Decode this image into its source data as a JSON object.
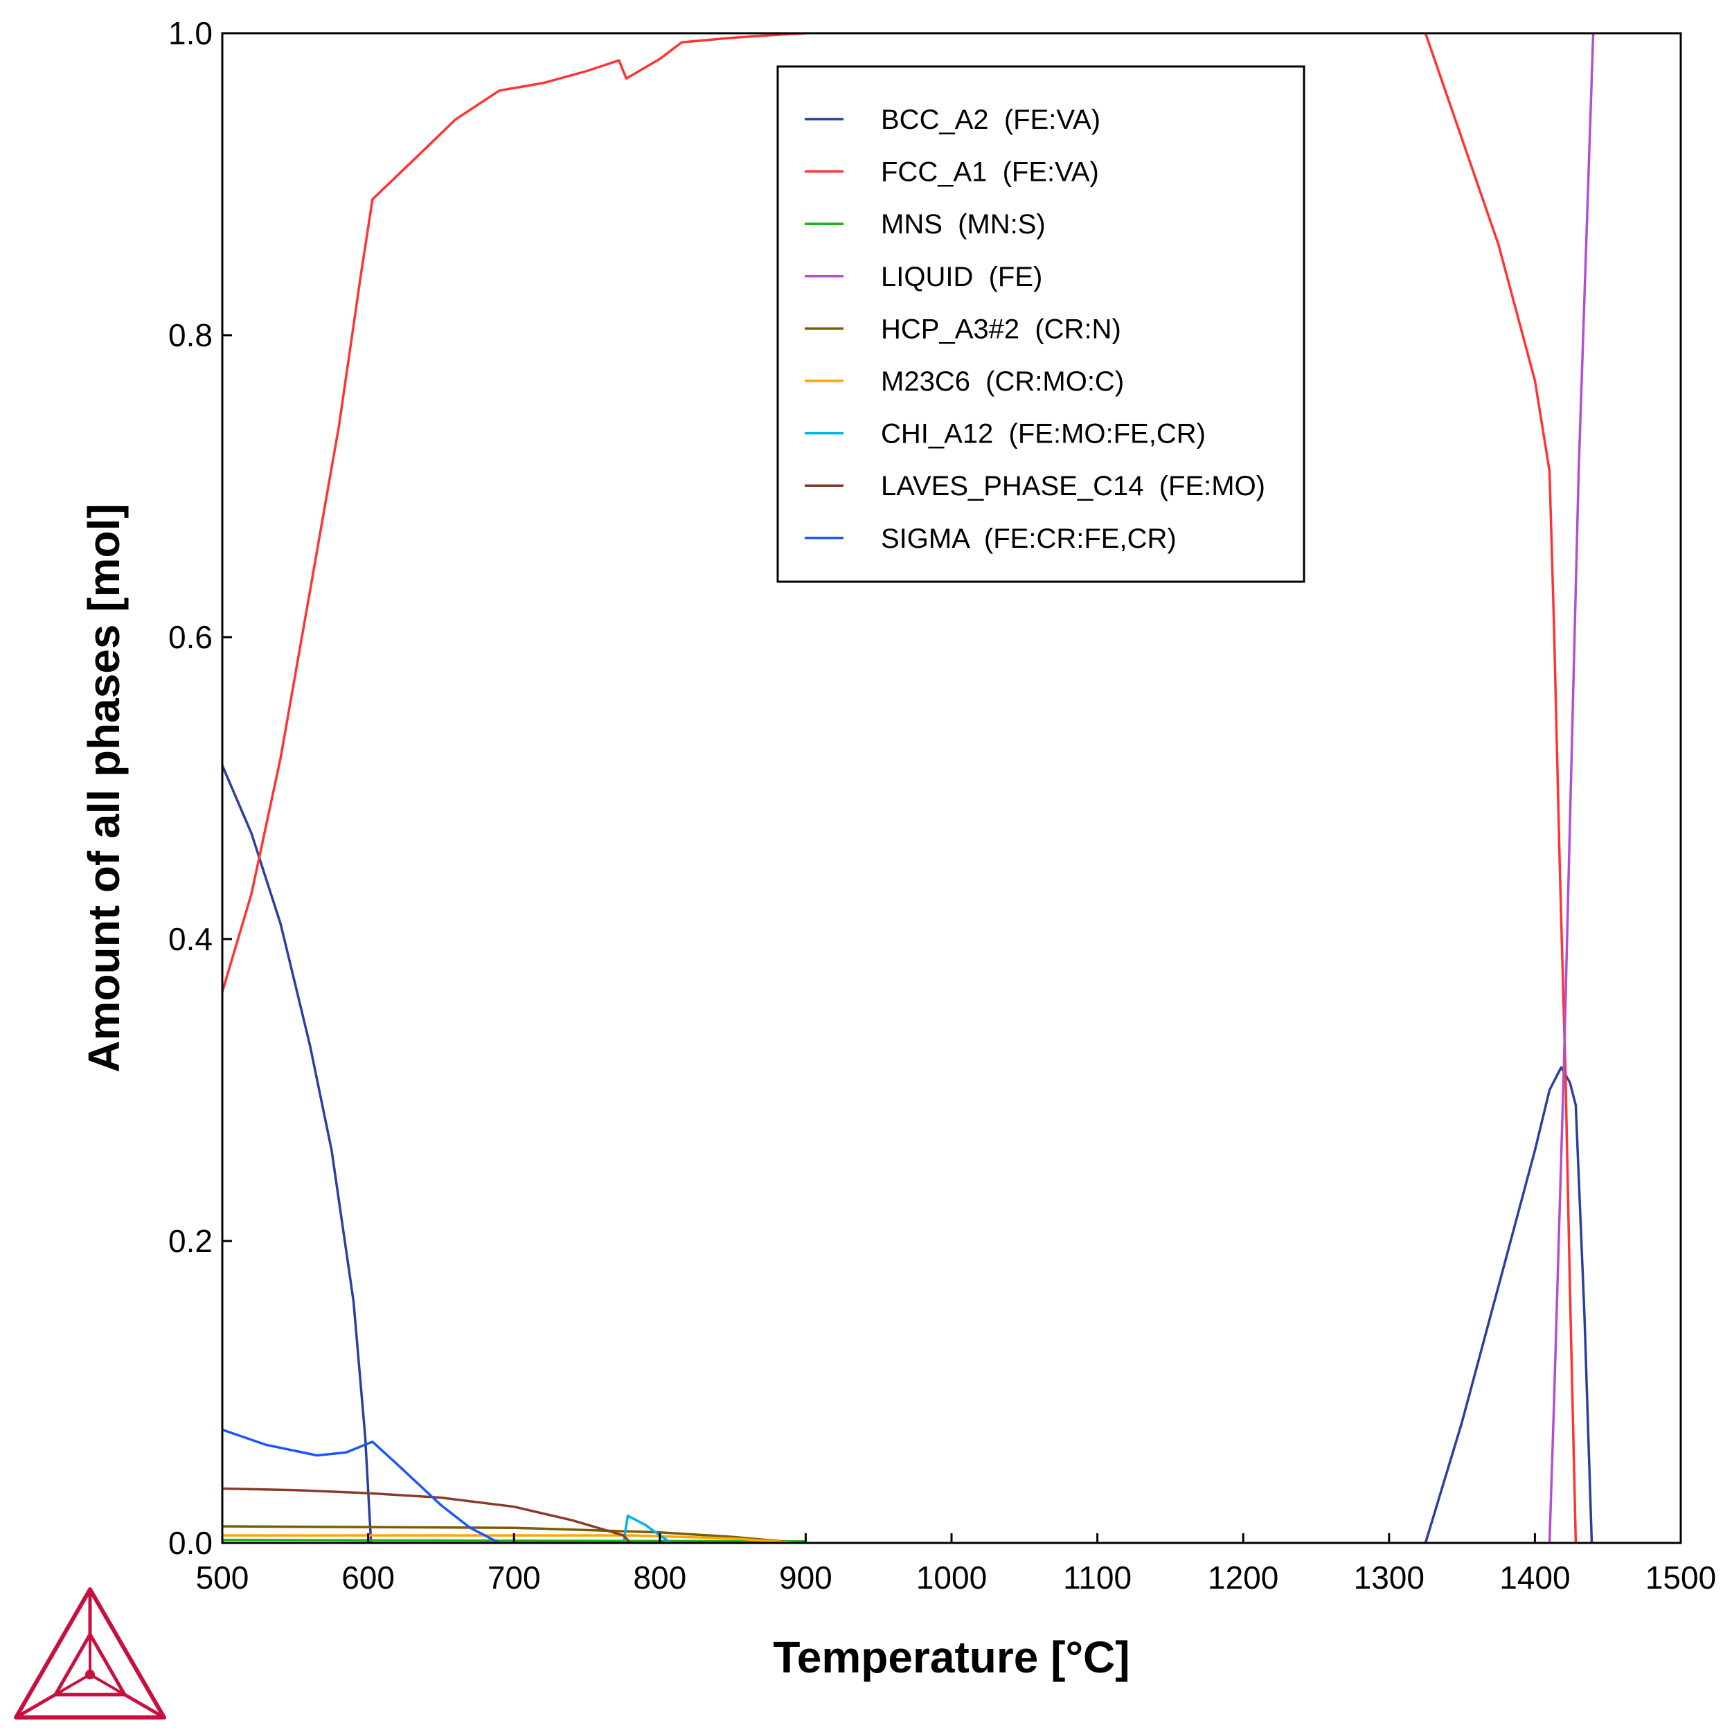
{
  "chart_data": {
    "type": "line",
    "title": "",
    "xlabel": "Temperature [°C]",
    "ylabel": "Amount of all phases [mol]",
    "xlim": [
      500,
      1500
    ],
    "ylim": [
      0,
      1
    ],
    "xticks": [
      500,
      600,
      700,
      800,
      900,
      1000,
      1100,
      1200,
      1300,
      1400,
      1500
    ],
    "yticks": [
      "0.0",
      "0.2",
      "0.4",
      "0.6",
      "0.8",
      "1.0"
    ],
    "grid": false,
    "legend_position": "top-center",
    "series": [
      {
        "name": "BCC_A2  (FE:VA)",
        "color": "#2a3f9e",
        "segments": [
          [
            [
              500,
              0.515
            ],
            [
              520,
              0.47
            ],
            [
              540,
              0.41
            ],
            [
              560,
              0.33
            ],
            [
              575,
              0.26
            ],
            [
              590,
              0.16
            ],
            [
              598,
              0.07
            ],
            [
              602,
              0.0
            ]
          ],
          [
            [
              1325,
              0.0
            ],
            [
              1350,
              0.08
            ],
            [
              1375,
              0.17
            ],
            [
              1400,
              0.26
            ],
            [
              1410,
              0.3
            ],
            [
              1418,
              0.315
            ],
            [
              1424,
              0.305
            ],
            [
              1428,
              0.29
            ],
            [
              1434,
              0.15
            ],
            [
              1439,
              0.0
            ]
          ]
        ]
      },
      {
        "name": "FCC_A1  (FE:VA)",
        "color": "#ff3333",
        "segments": [
          [
            [
              500,
              0.365
            ],
            [
              520,
              0.43
            ],
            [
              540,
              0.52
            ],
            [
              560,
              0.63
            ],
            [
              580,
              0.74
            ],
            [
              595,
              0.84
            ],
            [
              603,
              0.89
            ],
            [
              630,
              0.915
            ],
            [
              660,
              0.943
            ],
            [
              690,
              0.962
            ],
            [
              720,
              0.967
            ],
            [
              750,
              0.975
            ],
            [
              772,
              0.982
            ],
            [
              777,
              0.97
            ],
            [
              800,
              0.983
            ],
            [
              815,
              0.994
            ],
            [
              850,
              0.997
            ],
            [
              880,
              0.999
            ],
            [
              900,
              1.0
            ]
          ],
          [
            [
              1325,
              1.0
            ],
            [
              1350,
              0.93
            ],
            [
              1375,
              0.86
            ],
            [
              1400,
              0.77
            ],
            [
              1410,
              0.71
            ],
            [
              1413,
              0.61
            ],
            [
              1417,
              0.45
            ],
            [
              1421,
              0.31
            ],
            [
              1424,
              0.17
            ],
            [
              1428,
              0.0
            ]
          ]
        ]
      },
      {
        "name": "MNS  (MN:S)",
        "color": "#1db31d",
        "segments": [
          [
            [
              500,
              0.002
            ],
            [
              900,
              0.001
            ]
          ]
        ]
      },
      {
        "name": "LIQUID  (FE)",
        "color": "#b34dd6",
        "segments": [
          [
            [
              1410,
              0.0
            ],
            [
              1413,
              0.09
            ],
            [
              1420,
              0.32
            ],
            [
              1430,
              0.71
            ],
            [
              1440,
              1.0
            ]
          ]
        ]
      },
      {
        "name": "HCP_A3#2  (CR:N)",
        "color": "#7a5c00",
        "segments": [
          [
            [
              500,
              0.011
            ],
            [
              700,
              0.01
            ],
            [
              800,
              0.007
            ],
            [
              850,
              0.004
            ],
            [
              895,
              0.0
            ]
          ]
        ]
      },
      {
        "name": "M23C6  (CR:MO:C)",
        "color": "#ffa500",
        "segments": [
          [
            [
              500,
              0.005
            ],
            [
              600,
              0.005
            ],
            [
              700,
              0.005
            ],
            [
              780,
              0.005
            ],
            [
              850,
              0.003
            ],
            [
              895,
              0.0
            ]
          ]
        ]
      },
      {
        "name": "CHI_A12  (FE:MO:FE,CR)",
        "color": "#00b4e6",
        "segments": [
          [
            [
              775,
              0.0
            ],
            [
              778,
              0.018
            ],
            [
              790,
              0.012
            ],
            [
              800,
              0.005
            ],
            [
              808,
              0.0
            ]
          ]
        ]
      },
      {
        "name": "LAVES_PHASE_C14  (FE:MO)",
        "color": "#8b3a2a",
        "segments": [
          [
            [
              500,
              0.036
            ],
            [
              550,
              0.035
            ],
            [
              600,
              0.033
            ],
            [
              650,
              0.03
            ],
            [
              700,
              0.024
            ],
            [
              740,
              0.015
            ],
            [
              775,
              0.005
            ],
            [
              780,
              0.0
            ]
          ]
        ]
      },
      {
        "name": "SIGMA  (FE:CR:FE,CR)",
        "color": "#1a55ff",
        "segments": [
          [
            [
              500,
              0.075
            ],
            [
              530,
              0.065
            ],
            [
              565,
              0.058
            ],
            [
              585,
              0.06
            ],
            [
              603,
              0.067
            ],
            [
              620,
              0.052
            ],
            [
              650,
              0.025
            ],
            [
              670,
              0.01
            ],
            [
              690,
              0.0
            ]
          ]
        ]
      }
    ]
  },
  "logo": {
    "name": "thermo-calc-logo",
    "color": "#c8103e"
  }
}
